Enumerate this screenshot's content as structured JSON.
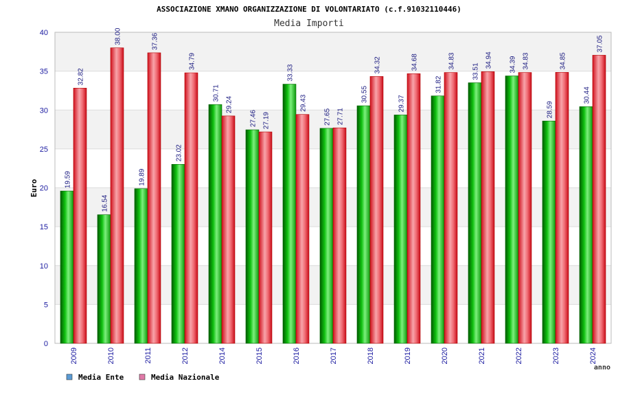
{
  "chart_data": {
    "type": "bar",
    "title": "ASSOCIAZIONE XMANO ORGANIZZAZIONE DI VOLONTARIATO (c.f.91032110446)",
    "subtitle": "Media Importi",
    "ylabel": "Euro",
    "xlabel": "anno",
    "ylim": [
      0,
      40
    ],
    "yticks": [
      "0",
      "5",
      "10",
      "15",
      "20",
      "25",
      "30",
      "35",
      "40"
    ],
    "grid": true,
    "legend_position": "bottom-left",
    "categories": [
      "2009",
      "2010",
      "2011",
      "2012",
      "2014",
      "2015",
      "2016",
      "2017",
      "2018",
      "2019",
      "2020",
      "2021",
      "2022",
      "2023",
      "2024"
    ],
    "series": [
      {
        "name": "Media Ente",
        "color": "#0cb10c",
        "legend_color": "#5b9bd5",
        "values": [
          19.59,
          16.54,
          19.89,
          23.02,
          30.71,
          27.46,
          33.33,
          27.65,
          30.55,
          29.37,
          31.82,
          33.51,
          34.39,
          28.59,
          30.44
        ],
        "labels": [
          "19.59",
          "16.54",
          "19.89",
          "23.02",
          "30.71",
          "27.46",
          "33.33",
          "27.65",
          "30.55",
          "29.37",
          "31.82",
          "33.51",
          "34.39",
          "28.59",
          "30.44"
        ]
      },
      {
        "name": "Media Nazionale",
        "color": "#e8242f",
        "legend_color": "#e07aa8",
        "values": [
          32.82,
          38.0,
          37.36,
          34.79,
          29.24,
          27.19,
          29.43,
          27.71,
          34.32,
          34.68,
          34.83,
          34.94,
          34.83,
          34.85,
          37.05
        ],
        "labels": [
          "32.82",
          "38.00",
          "37.36",
          "34.79",
          "29.24",
          "27.19",
          "29.43",
          "27.71",
          "34.32",
          "34.68",
          "34.83",
          "34.94",
          "34.83",
          "34.85",
          "37.05"
        ]
      }
    ]
  }
}
